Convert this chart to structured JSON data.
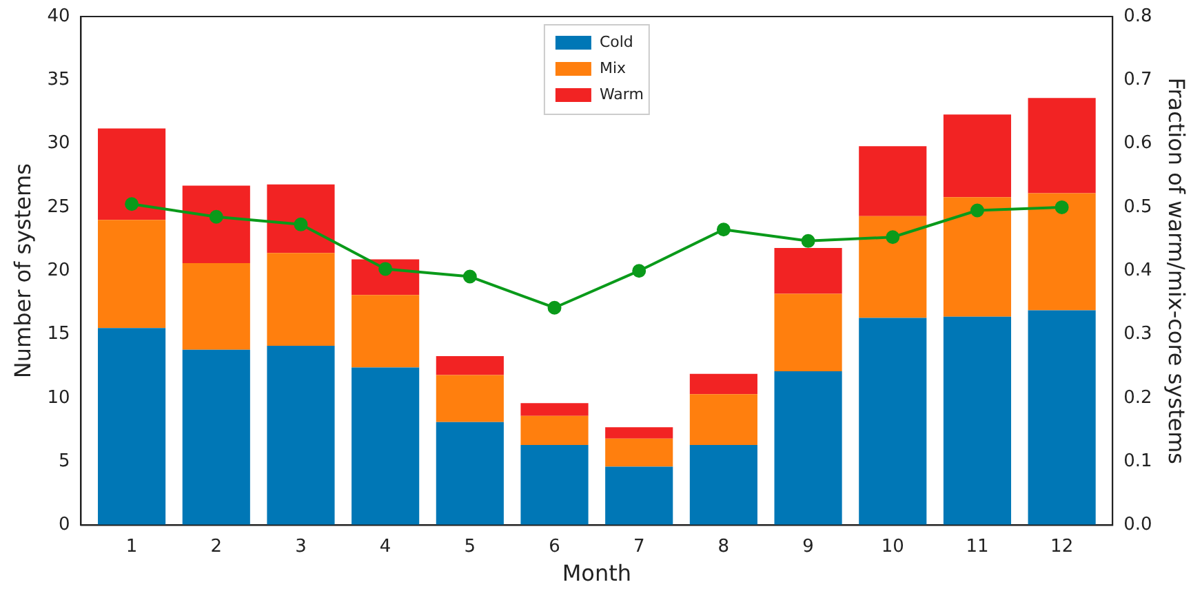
{
  "chart_data": {
    "type": "bar",
    "stacked": true,
    "xlabel": "Month",
    "ylabel": "Number of systems",
    "y2label": "Fraction of warm/mix-core systems",
    "x": [
      1,
      2,
      3,
      4,
      5,
      6,
      7,
      8,
      9,
      10,
      11,
      12
    ],
    "xlim": [
      0.4,
      12.6
    ],
    "xticks": [
      1,
      2,
      3,
      4,
      5,
      6,
      7,
      8,
      9,
      10,
      11,
      12
    ],
    "series": [
      {
        "name": "Cold",
        "color": "#0077b6",
        "values": [
          15.5,
          13.8,
          14.1,
          12.4,
          8.1,
          6.3,
          4.6,
          6.3,
          12.1,
          16.3,
          16.4,
          16.9
        ]
      },
      {
        "name": "Mix",
        "color": "#ff7f0e",
        "values": [
          8.5,
          6.8,
          7.3,
          5.7,
          3.7,
          2.3,
          2.2,
          4.0,
          6.1,
          8.0,
          9.4,
          9.2
        ]
      },
      {
        "name": "Warm",
        "color": "#f22323",
        "values": [
          7.2,
          6.1,
          5.4,
          2.8,
          1.5,
          1.0,
          0.9,
          1.6,
          3.6,
          5.5,
          6.5,
          7.5
        ]
      },
      {
        "type": "line",
        "axis": "y2",
        "color": "#0a9a1a",
        "values": [
          0.505,
          0.485,
          0.473,
          0.403,
          0.391,
          0.342,
          0.4,
          0.465,
          0.447,
          0.453,
          0.495,
          0.5
        ]
      }
    ],
    "ylim": [
      0,
      40
    ],
    "yticks": [
      0,
      5,
      10,
      15,
      20,
      25,
      30,
      35,
      40
    ],
    "y2lim": [
      0,
      0.8
    ],
    "y2ticks": [
      {
        "value": 0,
        "label": "0.0"
      },
      0.1,
      0.2,
      0.3,
      0.4,
      0.5,
      0.6,
      0.7,
      0.8
    ],
    "legend": "top",
    "marker": "circle",
    "grid": false
  }
}
